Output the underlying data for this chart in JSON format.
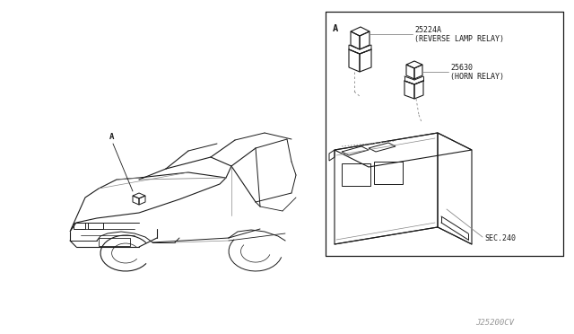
{
  "bg_color": "#ffffff",
  "line_color": "#1a1a1a",
  "gray_line": "#888888",
  "med_gray": "#666666",
  "watermark": "J25200CV",
  "box_label": "A",
  "label_25224a": "25224A",
  "label_reverse": "(REVERSE LAMP RELAY)",
  "label_25630": "25630",
  "label_horn": "(HORN RELAY)",
  "label_sec240": "SEC.240",
  "car_label_a": "A"
}
